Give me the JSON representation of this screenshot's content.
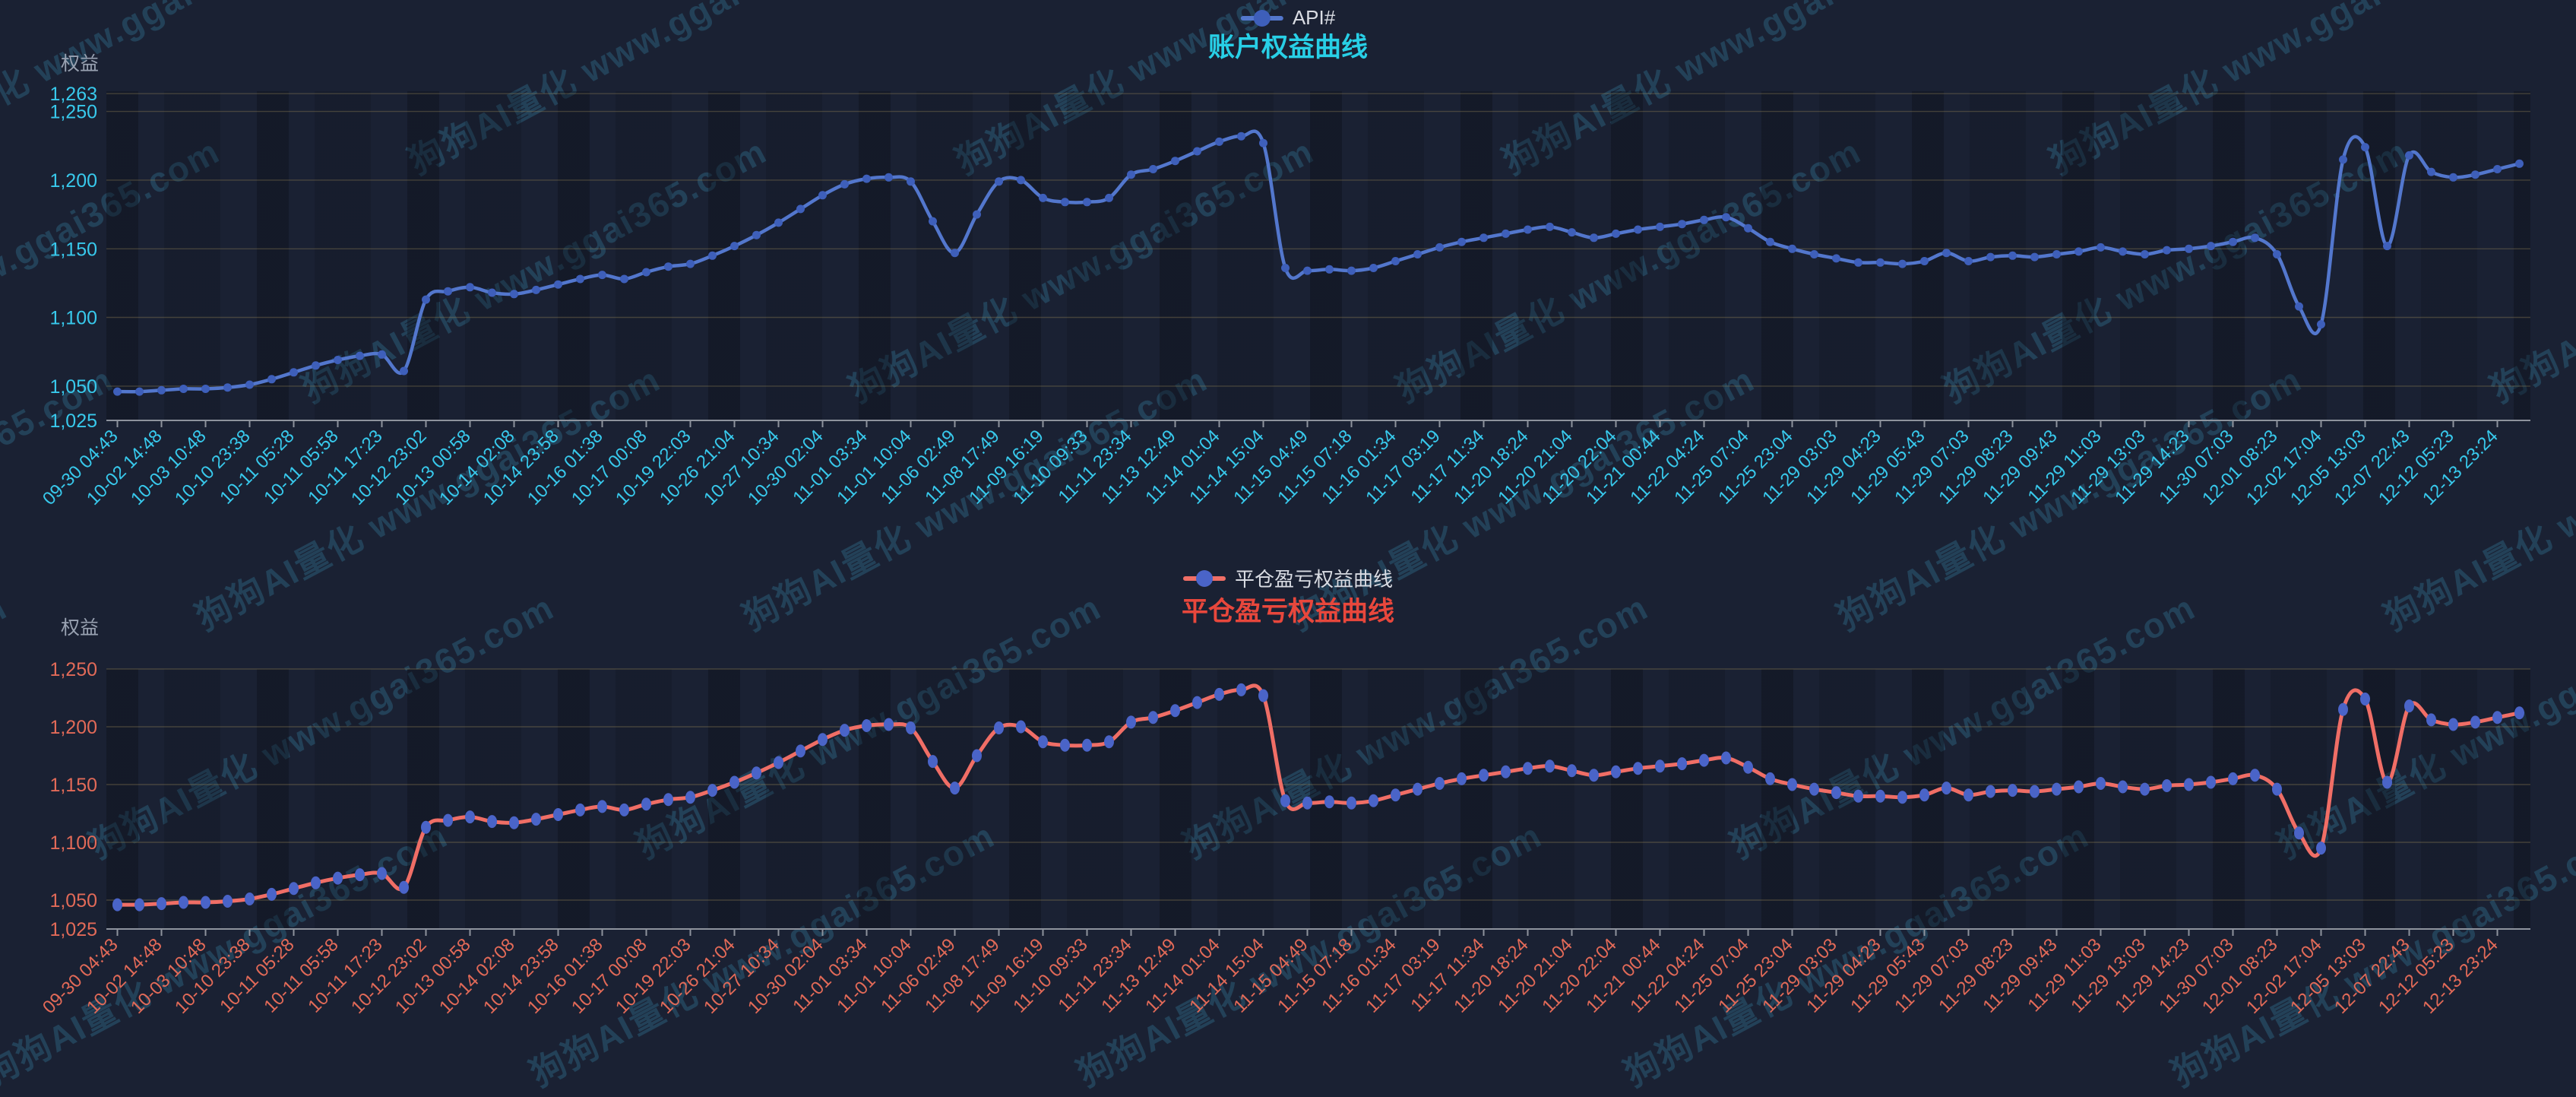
{
  "watermark": {
    "text": "狗狗AI量化 www.ggai365.com"
  },
  "chart_data": [
    {
      "type": "line",
      "name": "account-equity",
      "title": "账户权益曲线",
      "legend": [
        "API#"
      ],
      "ylabel": "权益",
      "xlabel": "",
      "ylim": [
        1025,
        1263
      ],
      "grid": true,
      "legend_position": "top-center",
      "label_interval": 2,
      "y_ticks": [
        {
          "label": "1,263",
          "value": 1263
        },
        {
          "label": "1,250",
          "value": 1250
        },
        {
          "label": "1,200",
          "value": 1200
        },
        {
          "label": "1,150",
          "value": 1150
        },
        {
          "label": "1,100",
          "value": 1100
        },
        {
          "label": "1,050",
          "value": 1050
        },
        {
          "label": "1,025",
          "value": 1025
        }
      ],
      "categories": [
        "09-30 04:43",
        "10-02 14:48",
        "10-03 10:48",
        "10-10 23:38",
        "10-11 05:28",
        "10-11 05:58",
        "10-11 17:23",
        "10-12 23:02",
        "10-13 00:58",
        "10-14 02:08",
        "10-14 23:58",
        "10-16 01:38",
        "10-17 00:08",
        "10-19 22:03",
        "10-26 21:04",
        "10-27 10:34",
        "10-30 02:04",
        "11-01 03:34",
        "11-01 10:04",
        "11-06 02:49",
        "11-08 17:49",
        "11-09 16:19",
        "11-10 09:33",
        "11-11 23:34",
        "11-13 12:49",
        "11-14 01:04",
        "11-14 15:04",
        "11-15 04:49",
        "11-15 07:18",
        "11-16 01:34",
        "11-17 03:19",
        "11-17 11:34",
        "11-20 18:24",
        "11-20 21:04",
        "11-20 22:04",
        "11-21 00:44",
        "11-22 04:24",
        "11-25 07:04",
        "11-25 23:04",
        "11-29 03:03",
        "11-29 04:23",
        "11-29 05:43",
        "11-29 07:03",
        "11-29 08:23",
        "11-29 09:43",
        "11-29 11:03",
        "11-29 13:03",
        "11-29 14:23",
        "11-30 07:03",
        "12-01 08:23",
        "12-02 17:04",
        "12-05 13:03",
        "12-07 22:43",
        "12-12 05:23",
        "12-13 23:24"
      ],
      "series": [
        {
          "name": "API#",
          "values": [
            1046,
            1046,
            1047,
            1048,
            1048,
            1049,
            1051,
            1055,
            1060,
            1065,
            1069,
            1072,
            1073,
            1061,
            1113,
            1119,
            1122,
            1118,
            1117,
            1120,
            1124,
            1128,
            1131,
            1128,
            1133,
            1137,
            1139,
            1145,
            1152,
            1160,
            1169,
            1179,
            1189,
            1197,
            1201,
            1202,
            1199,
            1170,
            1147,
            1175,
            1199,
            1200,
            1187,
            1184,
            1184,
            1187,
            1204,
            1208,
            1214,
            1221,
            1228,
            1232,
            1227,
            1136,
            1134,
            1135,
            1134,
            1136,
            1141,
            1146,
            1151,
            1155,
            1158,
            1161,
            1164,
            1166,
            1162,
            1158,
            1161,
            1164,
            1166,
            1168,
            1171,
            1173,
            1165,
            1155,
            1150,
            1146,
            1143,
            1140,
            1140,
            1139,
            1141,
            1147,
            1141,
            1144,
            1145,
            1144,
            1146,
            1148,
            1151,
            1148,
            1146,
            1149,
            1150,
            1152,
            1155,
            1158,
            1146,
            1108,
            1095,
            1215,
            1224,
            1152,
            1218,
            1206,
            1202,
            1204,
            1208,
            1212
          ]
        }
      ],
      "style": {
        "title_color": "#28cfe6",
        "label_color": "#38c9ec",
        "line_color": "#5377cd",
        "dot_color": "#3e5fba",
        "legend_text_color": "#d9dce3"
      }
    },
    {
      "type": "line",
      "name": "closed-pnl-equity",
      "title": "平仓盈亏权益曲线",
      "legend": [
        "平仓盈亏权益曲线"
      ],
      "ylabel": "权益",
      "xlabel": "",
      "ylim": [
        1025,
        1250
      ],
      "grid": true,
      "legend_position": "top-center",
      "label_interval": 2,
      "y_ticks": [
        {
          "label": "1,250",
          "value": 1250
        },
        {
          "label": "1,200",
          "value": 1200
        },
        {
          "label": "1,150",
          "value": 1150
        },
        {
          "label": "1,100",
          "value": 1100
        },
        {
          "label": "1,050",
          "value": 1050
        },
        {
          "label": "1,025",
          "value": 1025
        }
      ],
      "categories": [
        "09-30 04:43",
        "10-02 14:48",
        "10-03 10:48",
        "10-10 23:38",
        "10-11 05:28",
        "10-11 05:58",
        "10-11 17:23",
        "10-12 23:02",
        "10-13 00:58",
        "10-14 02:08",
        "10-14 23:58",
        "10-16 01:38",
        "10-17 00:08",
        "10-19 22:03",
        "10-26 21:04",
        "10-27 10:34",
        "10-30 02:04",
        "11-01 03:34",
        "11-01 10:04",
        "11-06 02:49",
        "11-08 17:49",
        "11-09 16:19",
        "11-10 09:33",
        "11-11 23:34",
        "11-13 12:49",
        "11-14 01:04",
        "11-14 15:04",
        "11-15 04:49",
        "11-15 07:18",
        "11-16 01:34",
        "11-17 03:19",
        "11-17 11:34",
        "11-20 18:24",
        "11-20 21:04",
        "11-20 22:04",
        "11-21 00:44",
        "11-22 04:24",
        "11-25 07:04",
        "11-25 23:04",
        "11-29 03:03",
        "11-29 04:23",
        "11-29 05:43",
        "11-29 07:03",
        "11-29 08:23",
        "11-29 09:43",
        "11-29 11:03",
        "11-29 13:03",
        "11-29 14:23",
        "11-30 07:03",
        "12-01 08:23",
        "12-02 17:04",
        "12-05 13:03",
        "12-07 22:43",
        "12-12 05:23",
        "12-13 23:24"
      ],
      "series": [
        {
          "name": "平仓盈亏权益曲线",
          "values": [
            1046,
            1046,
            1047,
            1048,
            1048,
            1049,
            1051,
            1055,
            1060,
            1065,
            1069,
            1072,
            1073,
            1061,
            1113,
            1119,
            1122,
            1118,
            1117,
            1120,
            1124,
            1128,
            1131,
            1128,
            1133,
            1137,
            1139,
            1145,
            1152,
            1160,
            1169,
            1179,
            1189,
            1197,
            1201,
            1202,
            1199,
            1170,
            1147,
            1175,
            1199,
            1200,
            1187,
            1184,
            1184,
            1187,
            1204,
            1208,
            1214,
            1221,
            1228,
            1232,
            1227,
            1136,
            1134,
            1135,
            1134,
            1136,
            1141,
            1146,
            1151,
            1155,
            1158,
            1161,
            1164,
            1166,
            1162,
            1158,
            1161,
            1164,
            1166,
            1168,
            1171,
            1173,
            1165,
            1155,
            1150,
            1146,
            1143,
            1140,
            1140,
            1139,
            1141,
            1147,
            1141,
            1144,
            1145,
            1144,
            1146,
            1148,
            1151,
            1148,
            1146,
            1149,
            1150,
            1152,
            1155,
            1158,
            1146,
            1108,
            1095,
            1215,
            1224,
            1152,
            1218,
            1206,
            1202,
            1204,
            1208,
            1212
          ]
        }
      ],
      "style": {
        "title_color": "#e8473c",
        "label_color": "#e26a58",
        "line_color": "#f06e66",
        "dot_color": "#4a64c8",
        "legend_text_color": "#d9dce3"
      }
    }
  ]
}
